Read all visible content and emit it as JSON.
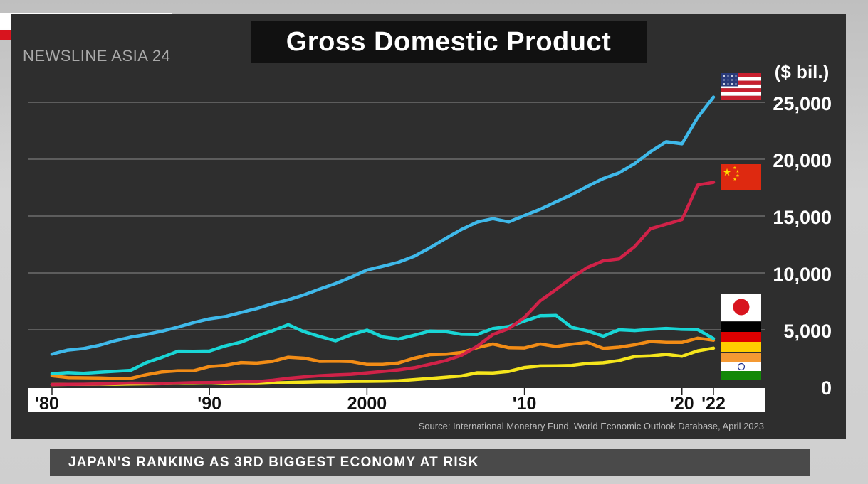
{
  "brand": {
    "name": "NEWSLINE ASIA 24"
  },
  "headline": "JAPAN'S RANKING AS 3RD BIGGEST ECONOMY AT RISK",
  "colors": {
    "panel": "#2e2e2e",
    "us": "#3fb9ea",
    "china": "#d02248",
    "japan": "#19d6d6",
    "germany": "#f28c16",
    "india": "#f5e51c"
  },
  "chart_data": {
    "type": "line",
    "title": "Gross Domestic Product",
    "unit_label": "($ bil.)",
    "source": "Source: International Monetary Fund, World Economic Outlook Database, April 2023",
    "x_ticks": [
      {
        "value": 1980,
        "label": "'80"
      },
      {
        "value": 1990,
        "label": "'90"
      },
      {
        "value": 2000,
        "label": "2000"
      },
      {
        "value": 2010,
        "label": "'10"
      },
      {
        "value": 2020,
        "label": "'20"
      },
      {
        "value": 2022,
        "label": "'22"
      }
    ],
    "y_ticks": [
      0,
      5000,
      10000,
      15000,
      20000,
      25000
    ],
    "y_tick_labels": [
      "0",
      "5,000",
      "10,000",
      "15,000",
      "20,000",
      "25,000"
    ],
    "xlim": [
      1980,
      2022
    ],
    "ylim": [
      0,
      25000
    ],
    "grid": true,
    "x": [
      1980,
      1981,
      1982,
      1983,
      1984,
      1985,
      1986,
      1987,
      1988,
      1989,
      1990,
      1991,
      1992,
      1993,
      1994,
      1995,
      1996,
      1997,
      1998,
      1999,
      2000,
      2001,
      2002,
      2003,
      2004,
      2005,
      2006,
      2007,
      2008,
      2009,
      2010,
      2011,
      2012,
      2013,
      2014,
      2015,
      2016,
      2017,
      2018,
      2019,
      2020,
      2021,
      2022
    ],
    "series": [
      {
        "key": "us",
        "flag": "us-flag",
        "values": [
          2860,
          3210,
          3350,
          3640,
          4040,
          4350,
          4590,
          4880,
          5240,
          5640,
          5960,
          6160,
          6520,
          6860,
          7290,
          7640,
          8070,
          8580,
          9060,
          9630,
          10250,
          10580,
          10940,
          11460,
          12210,
          13040,
          13820,
          14470,
          14770,
          14480,
          15050,
          15600,
          16250,
          16880,
          17610,
          18300,
          18800,
          19610,
          20660,
          21540,
          21350,
          23680,
          25460
        ]
      },
      {
        "key": "china",
        "flag": "china-flag",
        "values": [
          190,
          200,
          210,
          230,
          260,
          310,
          300,
          270,
          310,
          350,
          360,
          380,
          430,
          440,
          560,
          730,
          860,
          960,
          1030,
          1090,
          1210,
          1340,
          1470,
          1660,
          1960,
          2290,
          2750,
          3550,
          4590,
          5100,
          6090,
          7550,
          8530,
          9570,
          10480,
          11060,
          11230,
          12310,
          13890,
          14280,
          14690,
          17730,
          17960
        ]
      },
      {
        "key": "japan",
        "flag": "japan-flag",
        "values": [
          1130,
          1240,
          1170,
          1270,
          1350,
          1430,
          2120,
          2580,
          3120,
          3110,
          3130,
          3580,
          3910,
          4450,
          4910,
          5450,
          4830,
          4410,
          4030,
          4560,
          4970,
          4370,
          4180,
          4520,
          4890,
          4830,
          4600,
          4580,
          5110,
          5290,
          5760,
          6230,
          6270,
          5210,
          4900,
          4440,
          5000,
          4930,
          5040,
          5120,
          5040,
          5010,
          4230
        ]
      },
      {
        "key": "germany",
        "flag": "germany-flag",
        "values": [
          950,
          800,
          780,
          770,
          720,
          730,
          1050,
          1300,
          1400,
          1400,
          1770,
          1870,
          2120,
          2070,
          2210,
          2590,
          2500,
          2220,
          2240,
          2200,
          1950,
          1950,
          2080,
          2500,
          2810,
          2850,
          3000,
          3430,
          3750,
          3420,
          3400,
          3750,
          3530,
          3730,
          3890,
          3360,
          3470,
          3690,
          3970,
          3890,
          3890,
          4260,
          4080
        ]
      },
      {
        "key": "india",
        "flag": "india-flag",
        "values": [
          190,
          200,
          200,
          220,
          210,
          230,
          250,
          270,
          300,
          300,
          320,
          270,
          290,
          280,
          330,
          360,
          390,
          420,
          420,
          460,
          470,
          490,
          520,
          620,
          720,
          830,
          940,
          1220,
          1200,
          1340,
          1680,
          1820,
          1830,
          1860,
          2040,
          2100,
          2290,
          2650,
          2700,
          2840,
          2670,
          3150,
          3390
        ]
      }
    ]
  }
}
